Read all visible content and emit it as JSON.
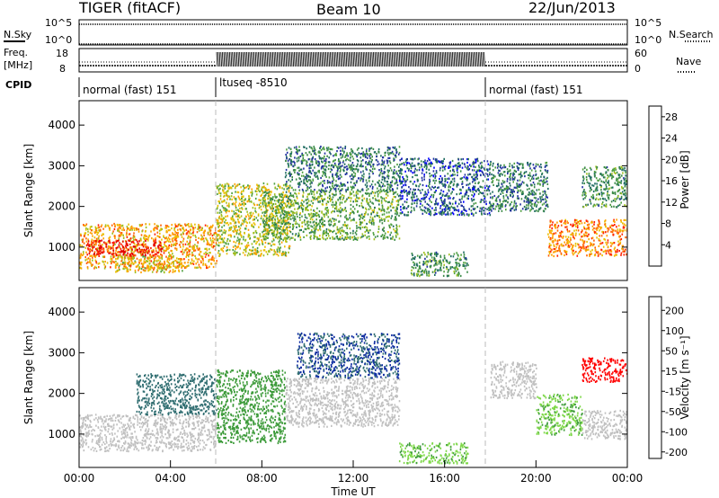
{
  "header": {
    "title": "TIGER (fitACF)",
    "beam": "Beam 10",
    "date": "22/Jun/2013"
  },
  "top_panels": {
    "nsky_label": "N.Sky",
    "nsky_ticks": [
      "10^5",
      "10^0"
    ],
    "nsearch_label": "N.Search",
    "nsearch_ticks": [
      "10^5",
      "10^0"
    ],
    "freq_label": "Freq.",
    "freq_unit": "[MHz]",
    "freq_ticks": [
      "18",
      "8"
    ],
    "nave_label": "Nave",
    "nave_ticks": [
      "60",
      "0"
    ],
    "cpid_label": "CPID",
    "cpid_segments": [
      {
        "label": "normal (fast) 151",
        "start_ut": 0,
        "end_ut": 6
      },
      {
        "label": "ltuseq -8510",
        "start_ut": 6,
        "end_ut": 18
      },
      {
        "label": "normal (fast) 151",
        "start_ut": 18,
        "end_ut": 24
      }
    ]
  },
  "chart_data": [
    {
      "type": "heatmap",
      "title": "",
      "ylabel": "Slant Range [km]",
      "xlabel": "",
      "x_unit": "UT hours",
      "xlim": [
        0,
        24
      ],
      "ylim": [
        180,
        4600
      ],
      "yticks": [
        "1000",
        "2000",
        "3000",
        "4000"
      ],
      "colorbar": {
        "label": "Power [dB]",
        "ticks": [
          "4",
          "8",
          "12",
          "16",
          "20",
          "24",
          "28"
        ],
        "range": [
          0,
          30
        ],
        "colors": [
          "#0000ff",
          "#2030a0",
          "#1e6b60",
          "#3b8a47",
          "#4fa040",
          "#a0c020",
          "#e8c000",
          "#ffa000",
          "#ff6000",
          "#ff2000",
          "#e00000"
        ]
      },
      "scatter_regions": [
        {
          "x": [
            0,
            6
          ],
          "y": [
            500,
            1600
          ],
          "value": 20
        },
        {
          "x": [
            0.3,
            3.7
          ],
          "y": [
            800,
            1200
          ],
          "value": 28
        },
        {
          "x": [
            1.5,
            4.5
          ],
          "y": [
            400,
            800
          ],
          "value": 18
        },
        {
          "x": [
            6,
            9.2
          ],
          "y": [
            800,
            2600
          ],
          "value": 16
        },
        {
          "x": [
            8,
            14
          ],
          "y": [
            1200,
            2400
          ],
          "value": 12
        },
        {
          "x": [
            9,
            14
          ],
          "y": [
            2400,
            3500
          ],
          "value": 8
        },
        {
          "x": [
            14,
            18
          ],
          "y": [
            1800,
            3200
          ],
          "value": 6
        },
        {
          "x": [
            14.5,
            17
          ],
          "y": [
            300,
            900
          ],
          "value": 10
        },
        {
          "x": [
            18,
            20.5
          ],
          "y": [
            1900,
            3100
          ],
          "value": 8
        },
        {
          "x": [
            20.5,
            24
          ],
          "y": [
            800,
            1700
          ],
          "value": 22
        },
        {
          "x": [
            22,
            24
          ],
          "y": [
            2000,
            3000
          ],
          "value": 10
        }
      ]
    },
    {
      "type": "heatmap",
      "title": "",
      "ylabel": "Slant Range [km]",
      "xlabel": "Time UT",
      "x_unit": "UT hours",
      "xlim": [
        0,
        24
      ],
      "xticks": [
        "00:00",
        "04:00",
        "08:00",
        "12:00",
        "16:00",
        "20:00",
        "00:00"
      ],
      "ylim": [
        180,
        4600
      ],
      "yticks": [
        "1000",
        "2000",
        "3000",
        "4000"
      ],
      "colorbar": {
        "label": "Velocity [m s⁻¹]",
        "ticks": [
          "200",
          "100",
          "50",
          "15",
          "-15",
          "-50",
          "-100",
          "-200"
        ],
        "colors": [
          "#0a2aa0",
          "#2f6d70",
          "#3d9b3a",
          "#7fd84a",
          "#c0c0c0",
          "#ff9000",
          "#ff5000",
          "#ff0000"
        ]
      },
      "scatter_regions": [
        {
          "x": [
            0,
            6
          ],
          "y": [
            600,
            1500
          ],
          "value": 0
        },
        {
          "x": [
            2.5,
            6
          ],
          "y": [
            1500,
            2500
          ],
          "value": 110
        },
        {
          "x": [
            6,
            9
          ],
          "y": [
            800,
            2600
          ],
          "value": 60
        },
        {
          "x": [
            9,
            14
          ],
          "y": [
            1200,
            2400
          ],
          "value": 0
        },
        {
          "x": [
            9.5,
            14
          ],
          "y": [
            2400,
            3500
          ],
          "value": 150
        },
        {
          "x": [
            14,
            17
          ],
          "y": [
            300,
            800
          ],
          "value": 30
        },
        {
          "x": [
            18,
            20
          ],
          "y": [
            1900,
            2800
          ],
          "value": 0
        },
        {
          "x": [
            20,
            22
          ],
          "y": [
            1000,
            2000
          ],
          "value": 30
        },
        {
          "x": [
            22,
            24
          ],
          "y": [
            900,
            1600
          ],
          "value": 0
        },
        {
          "x": [
            22,
            24
          ],
          "y": [
            2300,
            2900
          ],
          "value": -200
        }
      ]
    }
  ]
}
